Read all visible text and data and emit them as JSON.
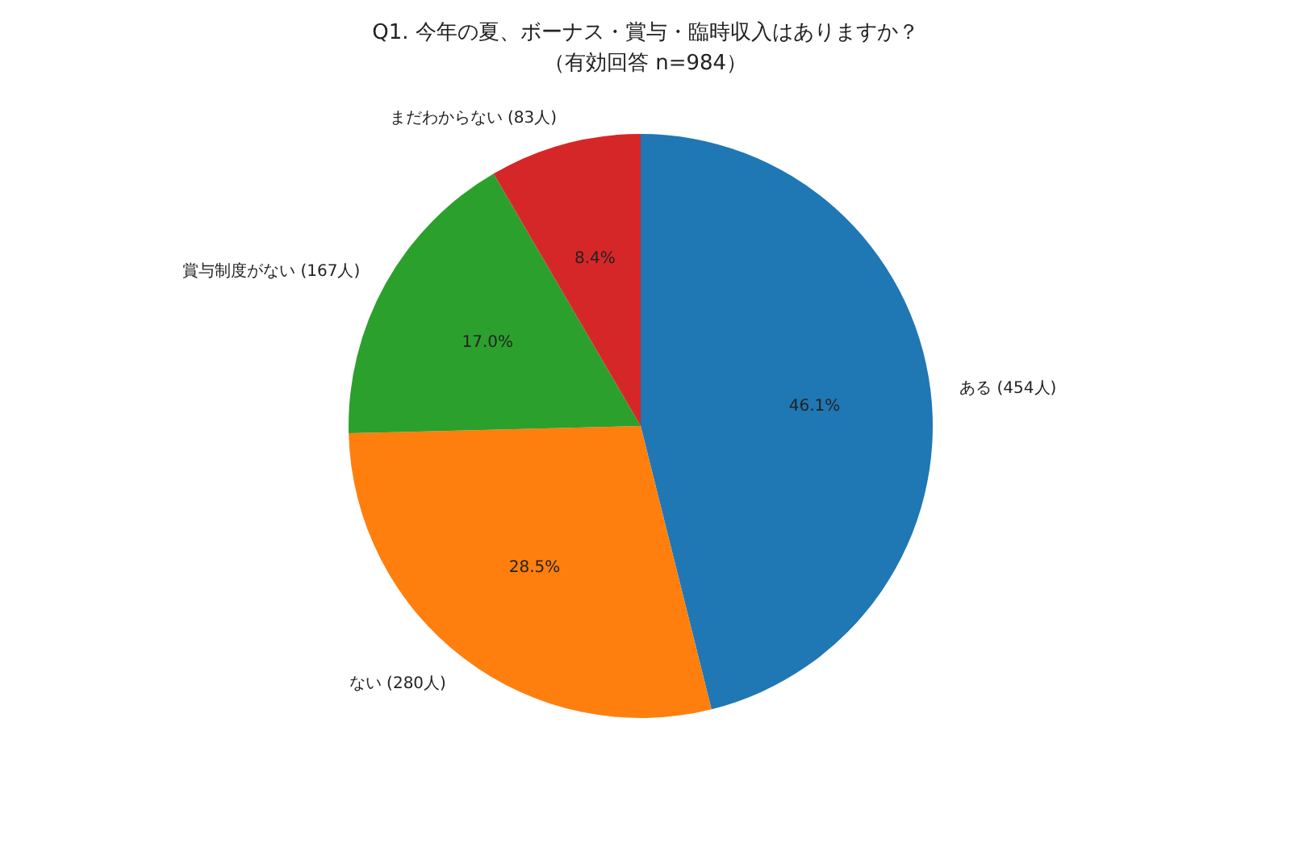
{
  "chart_data": {
    "type": "pie",
    "title": "Q1. 今年の夏、ボーナス・賞与・臨時収入はありますか？",
    "subtitle": "（有効回答 n=984）",
    "categories": [
      "ある (454人)",
      "ない (280人)",
      "賞与制度がない (167人)",
      "まだわからない (83人)"
    ],
    "values": [
      46.1,
      28.5,
      17.0,
      8.4
    ],
    "value_labels": [
      "46.1%",
      "28.5%",
      "17.0%",
      "8.4%"
    ],
    "colors": [
      "#1f77b4",
      "#ff7f0e",
      "#2ca02c",
      "#d62728"
    ]
  }
}
